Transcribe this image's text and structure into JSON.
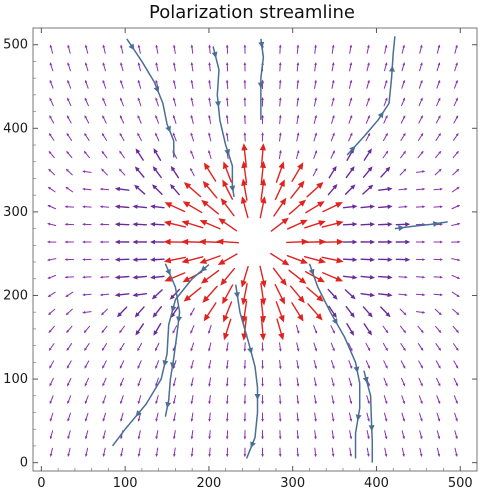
{
  "chart_data": {
    "type": "vector-field",
    "title": "Polarization streamline",
    "xlabel": "",
    "ylabel": "",
    "xlim": [
      -10,
      520
    ],
    "ylim": [
      -10,
      520
    ],
    "x_ticks": [
      0,
      100,
      200,
      300,
      400,
      500
    ],
    "y_ticks": [
      0,
      100,
      200,
      300,
      400,
      500
    ],
    "grid": false,
    "field_center": [
      255,
      262
    ],
    "vector_grid_spacing": 21,
    "colors": {
      "far_field": "#8a2fb0",
      "near_field": "#e0231f",
      "dark_vector": "#6a2a9a",
      "streamline": "#4a6f94",
      "frame": "#777777"
    },
    "streamlines": [
      {
        "name": "top-left-1",
        "points": [
          [
            102,
            507
          ],
          [
            120,
            480
          ],
          [
            135,
            455
          ],
          [
            145,
            430
          ],
          [
            150,
            405
          ],
          [
            158,
            385
          ],
          [
            158,
            365
          ]
        ]
      },
      {
        "name": "top-center-1",
        "points": [
          [
            205,
            498
          ],
          [
            212,
            470
          ],
          [
            210,
            440
          ],
          [
            213,
            410
          ],
          [
            220,
            380
          ],
          [
            228,
            355
          ],
          [
            228,
            330
          ],
          [
            230,
            318
          ]
        ]
      },
      {
        "name": "top-center-2",
        "points": [
          [
            262,
            507
          ],
          [
            265,
            485
          ],
          [
            262,
            460
          ],
          [
            262,
            435
          ],
          [
            262,
            410
          ]
        ]
      },
      {
        "name": "top-right-1",
        "points": [
          [
            365,
            368
          ],
          [
            385,
            390
          ],
          [
            402,
            410
          ],
          [
            415,
            430
          ],
          [
            418,
            460
          ],
          [
            420,
            490
          ],
          [
            422,
            510
          ]
        ]
      },
      {
        "name": "right-1",
        "points": [
          [
            422,
            280
          ],
          [
            445,
            283
          ],
          [
            465,
            285
          ],
          [
            485,
            288
          ]
        ]
      },
      {
        "name": "bottom-left-1",
        "points": [
          [
            200,
            237
          ],
          [
            180,
            220
          ],
          [
            160,
            195
          ],
          [
            152,
            165
          ],
          [
            150,
            130
          ],
          [
            143,
            100
          ],
          [
            125,
            70
          ],
          [
            100,
            40
          ],
          [
            85,
            20
          ]
        ]
      },
      {
        "name": "bottom-left-2",
        "points": [
          [
            148,
            238
          ],
          [
            160,
            210
          ],
          [
            165,
            180
          ],
          [
            162,
            155
          ],
          [
            158,
            125
          ],
          [
            154,
            100
          ],
          [
            152,
            75
          ],
          [
            148,
            55
          ]
        ]
      },
      {
        "name": "bottom-center-1",
        "points": [
          [
            232,
            213
          ],
          [
            237,
            180
          ],
          [
            247,
            145
          ],
          [
            255,
            115
          ],
          [
            258,
            90
          ],
          [
            258,
            60
          ],
          [
            255,
            30
          ],
          [
            245,
            5
          ]
        ]
      },
      {
        "name": "bottom-right-1",
        "points": [
          [
            320,
            238
          ],
          [
            330,
            210
          ],
          [
            345,
            180
          ],
          [
            362,
            150
          ],
          [
            375,
            120
          ],
          [
            380,
            95
          ],
          [
            380,
            65
          ],
          [
            375,
            35
          ],
          [
            375,
            5
          ]
        ]
      },
      {
        "name": "bottom-right-2",
        "points": [
          [
            385,
            110
          ],
          [
            393,
            80
          ],
          [
            394,
            50
          ],
          [
            395,
            25
          ],
          [
            395,
            0
          ]
        ]
      }
    ]
  }
}
